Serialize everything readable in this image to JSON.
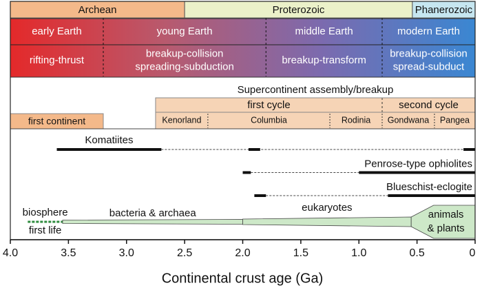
{
  "chart_data": {
    "type": "timeline",
    "xlabel": "Continental crust age (Ga)",
    "xlim": [
      4,
      0
    ],
    "xticks": [
      {
        "value": 4,
        "label": "4.0"
      },
      3.5,
      {
        "value": 3,
        "label": "3.0"
      },
      2.5,
      {
        "value": 2,
        "label": "2.0"
      },
      1.5,
      {
        "value": 1,
        "label": "1.0"
      },
      0.5,
      0
    ],
    "eons": [
      {
        "label": "Archean",
        "start": 4,
        "end": 2.5,
        "color": "#f4b98a"
      },
      {
        "label": "Proterozoic",
        "start": 2.5,
        "end": 0.54,
        "color": "#ebf1c9"
      },
      {
        "label": "Phanerozoic",
        "start": 0.54,
        "end": 0,
        "color": "#c6e6f0"
      }
    ],
    "gradient": [
      "#e4292a",
      "#b85a6e",
      "#7c6aae",
      "#3a87d2"
    ],
    "stages": [
      {
        "lines": [
          "early Earth"
        ],
        "start": 4,
        "end": 3.2
      },
      {
        "lines": [
          "young Earth"
        ],
        "start": 3.2,
        "end": 1.8
      },
      {
        "lines": [
          "middle Earth"
        ],
        "start": 1.8,
        "end": 0.8
      },
      {
        "lines": [
          "modern Earth"
        ],
        "start": 0.8,
        "end": 0
      }
    ],
    "tectonics": [
      {
        "lines": [
          "rifting-thrust"
        ],
        "start": 4,
        "end": 3.2
      },
      {
        "lines": [
          "breakup-collision",
          "spreading-subduction"
        ],
        "start": 3.2,
        "end": 1.8
      },
      {
        "lines": [
          "breakup-transform"
        ],
        "start": 1.8,
        "end": 0.8
      },
      {
        "lines": [
          "breakup-collision",
          "spread-subduct"
        ],
        "start": 0.8,
        "end": 0
      }
    ],
    "supercontinent": {
      "title": "Supercontinent assembly/breakup",
      "color": "#f6d4b6",
      "cycles": [
        {
          "label": "first cycle",
          "start": 2.75,
          "end": 0.8
        },
        {
          "label": "second cycle",
          "start": 0.8,
          "end": 0
        }
      ],
      "continents": [
        {
          "label": "Kenorland",
          "start": 2.75,
          "end": 2.3
        },
        {
          "label": "Columbia",
          "start": 2.3,
          "end": 1.25
        },
        {
          "label": "Rodinia",
          "start": 1.25,
          "end": 0.8
        },
        {
          "label": "Gondwana",
          "start": 0.8,
          "end": 0.35
        },
        {
          "label": "Pangea",
          "start": 0.35,
          "end": 0
        }
      ]
    },
    "first_continent": {
      "label": "first continent",
      "start": 4,
      "end": 3.2,
      "color": "#f4b98a"
    },
    "ranges": [
      {
        "label": "Komatiites",
        "solid": [
          [
            3.6,
            2.7
          ],
          [
            1.95,
            1.85
          ],
          [
            0.1,
            0
          ]
        ],
        "dashed": [
          [
            2.7,
            0.1
          ]
        ]
      },
      {
        "label": "Penrose-type ophiolites",
        "solid": [
          [
            2.0,
            1.93
          ],
          [
            1.0,
            0
          ]
        ],
        "dashed": [
          [
            1.93,
            1.0
          ]
        ]
      },
      {
        "label": "Blueschist-eclogite",
        "solid": [
          [
            1.9,
            1.8
          ],
          [
            0.75,
            0
          ]
        ],
        "dashed": [
          [
            1.8,
            0.75
          ]
        ]
      }
    ],
    "biosphere": {
      "label": "biosphere",
      "color": "#cde8c8",
      "first_life": {
        "label": "first life",
        "start": 3.85,
        "end": 3.55,
        "color": "#2e8b3e"
      },
      "phases": [
        {
          "lines": [
            "bacteria & archaea"
          ],
          "start": 3.55,
          "end": 2.0
        },
        {
          "lines": [
            "eukaryotes"
          ],
          "start": 2.0,
          "end": 0.55
        },
        {
          "lines": [
            "animals",
            "& plants"
          ],
          "start": 0.55,
          "end": 0
        }
      ]
    }
  }
}
